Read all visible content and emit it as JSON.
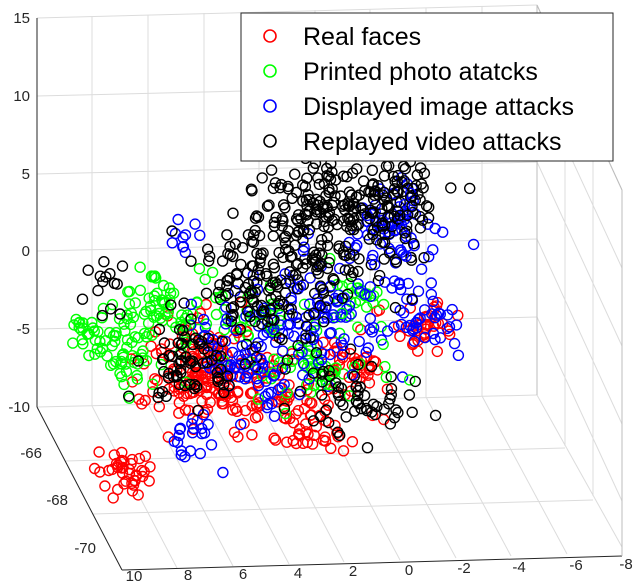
{
  "chart_data": {
    "type": "scatter",
    "projection": "3d",
    "title": "",
    "xlabel": "",
    "ylabel": "",
    "zlabel": "",
    "z_ticks": [
      "15",
      "10",
      "5",
      "0",
      "-5",
      "-10"
    ],
    "y_ticks": [
      "-66",
      "-68",
      "-70"
    ],
    "x_ticks": [
      "10",
      "8",
      "6",
      "4",
      "2",
      "0",
      "-2",
      "-4",
      "-6",
      "-8"
    ],
    "zlim": [
      -10,
      15
    ],
    "xlim": [
      -8,
      10
    ],
    "ylim": [
      -71,
      -64
    ],
    "grid": true,
    "legend_position": "top-right",
    "marker": "circle-open",
    "series": [
      {
        "name": "Real faces",
        "color": "#ff0000",
        "clusters": [
          {
            "x": 8.2,
            "y": -66.8,
            "z": -10.0,
            "spread": [
              0.5,
              0.3,
              0.6
            ],
            "n": 40
          },
          {
            "x": 5.0,
            "y": -65.8,
            "z": -5.6,
            "spread": [
              0.9,
              0.5,
              1.2
            ],
            "n": 110
          },
          {
            "x": 3.2,
            "y": -65.6,
            "z": -6.2,
            "spread": [
              1.2,
              0.6,
              1.3
            ],
            "n": 90
          },
          {
            "x": 1.2,
            "y": -66.0,
            "z": -8.4,
            "spread": [
              0.6,
              0.4,
              1.0
            ],
            "n": 45
          },
          {
            "x": -1.0,
            "y": -65.4,
            "z": -5.8,
            "spread": [
              0.9,
              0.5,
              1.0
            ],
            "n": 45
          },
          {
            "x": -3.6,
            "y": -65.0,
            "z": -4.0,
            "spread": [
              0.6,
              0.4,
              0.8
            ],
            "n": 35
          }
        ]
      },
      {
        "name": "Printed photo atatcks",
        "color": "#00ff00",
        "clusters": [
          {
            "x": 9.0,
            "y": -65.8,
            "z": -2.6,
            "spread": [
              0.4,
              0.3,
              0.5
            ],
            "n": 25
          },
          {
            "x": 7.8,
            "y": -66.0,
            "z": -3.5,
            "spread": [
              0.6,
              0.4,
              0.7
            ],
            "n": 40
          },
          {
            "x": 6.2,
            "y": -65.6,
            "z": -1.6,
            "spread": [
              1.0,
              0.5,
              1.2
            ],
            "n": 75
          },
          {
            "x": 2.8,
            "y": -65.4,
            "z": -2.6,
            "spread": [
              0.8,
              0.5,
              1.0
            ],
            "n": 30
          },
          {
            "x": 0.6,
            "y": -65.6,
            "z": -5.6,
            "spread": [
              1.2,
              0.5,
              1.0
            ],
            "n": 55
          },
          {
            "x": -1.0,
            "y": -65.2,
            "z": -1.6,
            "spread": [
              0.6,
              0.4,
              0.8
            ],
            "n": 25
          }
        ]
      },
      {
        "name": "Displayed image attacks",
        "color": "#0000ff",
        "clusters": [
          {
            "x": 5.8,
            "y": -66.4,
            "z": 3.6,
            "spread": [
              0.3,
              0.2,
              0.7
            ],
            "n": 10
          },
          {
            "x": 5.6,
            "y": -66.6,
            "z": -8.2,
            "spread": [
              0.4,
              0.3,
              0.8
            ],
            "n": 20
          },
          {
            "x": 3.0,
            "y": -65.8,
            "z": -4.6,
            "spread": [
              1.0,
              0.6,
              1.4
            ],
            "n": 90
          },
          {
            "x": 0.2,
            "y": -65.2,
            "z": -2.6,
            "spread": [
              1.2,
              0.7,
              1.6
            ],
            "n": 90
          },
          {
            "x": -2.8,
            "y": -64.6,
            "z": 1.6,
            "spread": [
              0.8,
              0.5,
              1.4
            ],
            "n": 75
          },
          {
            "x": -3.6,
            "y": -64.8,
            "z": -3.6,
            "spread": [
              0.7,
              0.5,
              1.0
            ],
            "n": 40
          }
        ]
      },
      {
        "name": "Replayed video attacks",
        "color": "#000000",
        "clusters": [
          {
            "x": 8.6,
            "y": -66.2,
            "z": 0.6,
            "spread": [
              0.4,
              0.4,
              1.4
            ],
            "n": 14
          },
          {
            "x": 5.4,
            "y": -65.8,
            "z": -4.8,
            "spread": [
              1.0,
              0.6,
              1.4
            ],
            "n": 70
          },
          {
            "x": 2.2,
            "y": -65.2,
            "z": -0.6,
            "spread": [
              1.2,
              0.7,
              1.8
            ],
            "n": 140
          },
          {
            "x": -0.2,
            "y": -64.6,
            "z": 2.4,
            "spread": [
              1.4,
              0.7,
              2.0
            ],
            "n": 180
          },
          {
            "x": -2.4,
            "y": -64.4,
            "z": 3.8,
            "spread": [
              1.0,
              0.6,
              1.6
            ],
            "n": 110
          },
          {
            "x": -0.8,
            "y": -65.8,
            "z": -7.2,
            "spread": [
              1.0,
              0.5,
              1.0
            ],
            "n": 60
          }
        ]
      }
    ]
  }
}
